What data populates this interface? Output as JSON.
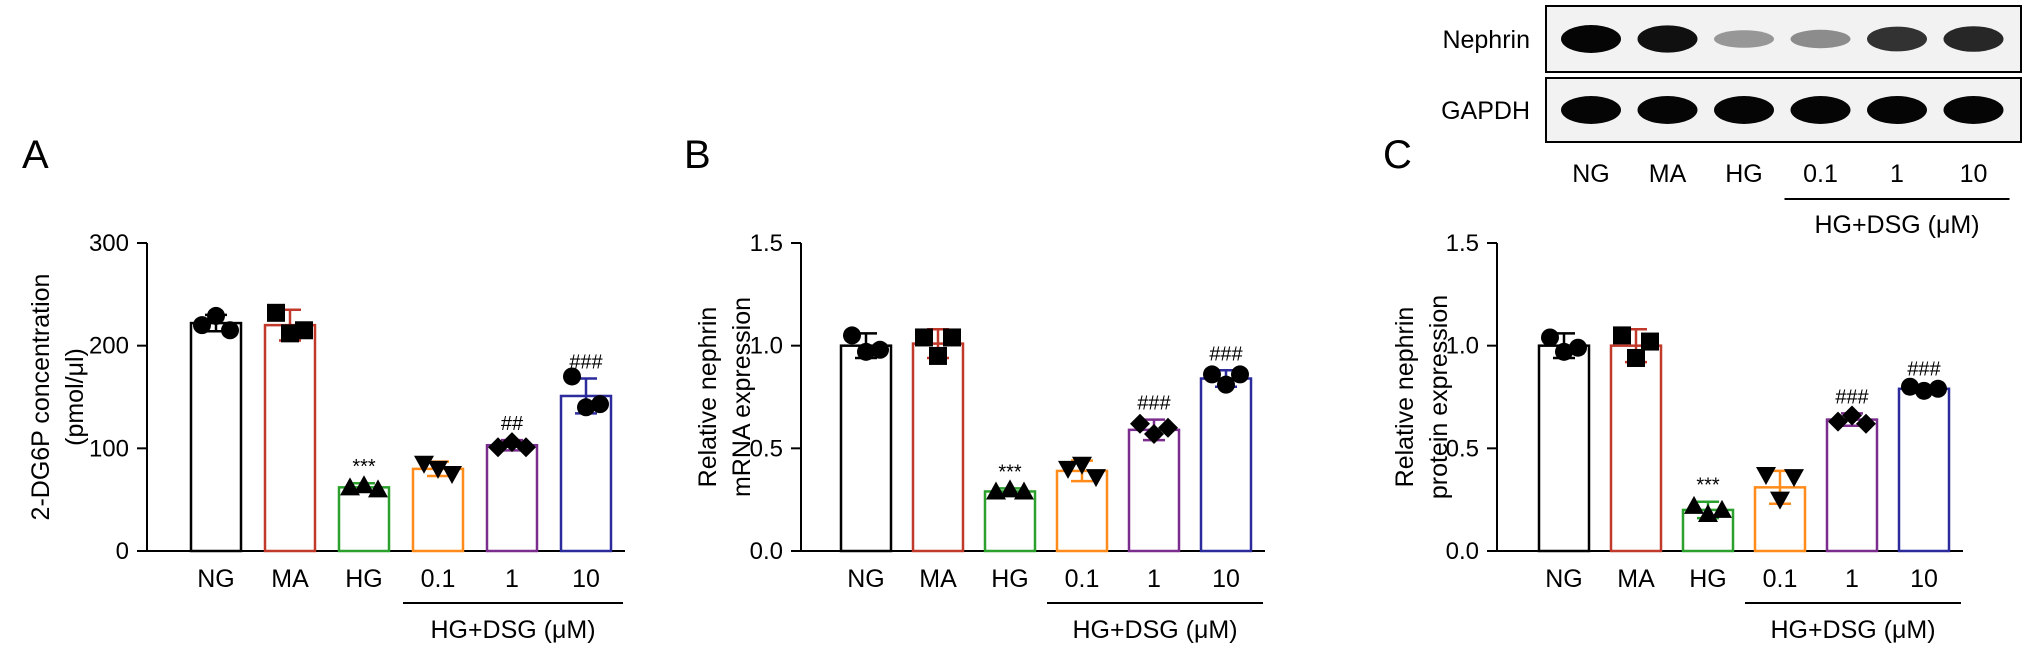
{
  "chart_data": [
    {
      "type": "bar",
      "panel": "A",
      "categories": [
        "NG",
        "MA",
        "HG",
        "0.1",
        "1",
        "10"
      ],
      "group_label": "HG+DSG (μM)",
      "ylabel_lines": [
        "2-DG6P concentration",
        "(pmol/μl)"
      ],
      "ylim": [
        0,
        300
      ],
      "yticks": [
        "0",
        "100",
        "200",
        "300"
      ],
      "values": [
        222,
        220,
        62,
        80,
        103,
        151
      ],
      "errors": [
        8,
        15,
        4,
        7,
        5,
        17
      ],
      "points": [
        [
          220,
          229,
          215
        ],
        [
          232,
          212,
          215
        ],
        [
          62,
          64,
          60
        ],
        [
          85,
          80,
          75
        ],
        [
          101,
          106,
          101
        ],
        [
          170,
          140,
          143
        ]
      ],
      "markers": [
        "circle",
        "square",
        "triangle-up",
        "triangle-down",
        "diamond",
        "circle"
      ],
      "significance": [
        "",
        "",
        "***",
        "",
        "##",
        "###"
      ]
    },
    {
      "type": "bar",
      "panel": "B",
      "categories": [
        "NG",
        "MA",
        "HG",
        "0.1",
        "1",
        "10"
      ],
      "group_label": "HG+DSG (μM)",
      "ylabel_lines": [
        "Relative nephrin",
        "mRNA expression"
      ],
      "ylim": [
        0,
        1.5
      ],
      "yticks": [
        "0.0",
        "0.5",
        "1.0",
        "1.5"
      ],
      "values": [
        1.0,
        1.01,
        0.29,
        0.39,
        0.59,
        0.84
      ],
      "errors": [
        0.06,
        0.07,
        0.015,
        0.05,
        0.05,
        0.04
      ],
      "points": [
        [
          1.05,
          0.97,
          0.98
        ],
        [
          1.04,
          0.95,
          1.04
        ],
        [
          0.29,
          0.3,
          0.29
        ],
        [
          0.4,
          0.42,
          0.36
        ],
        [
          0.62,
          0.57,
          0.6
        ],
        [
          0.86,
          0.81,
          0.86
        ]
      ],
      "markers": [
        "circle",
        "square",
        "triangle-up",
        "triangle-down",
        "diamond",
        "circle"
      ],
      "significance": [
        "",
        "",
        "***",
        "",
        "###",
        "###"
      ]
    },
    {
      "type": "bar",
      "panel": "C",
      "categories": [
        "NG",
        "MA",
        "HG",
        "0.1",
        "1",
        "10"
      ],
      "group_label": "HG+DSG (μM)",
      "ylabel_lines": [
        "Relative nephrin",
        "protein expression"
      ],
      "ylim": [
        0,
        1.5
      ],
      "yticks": [
        "0.0",
        "0.5",
        "1.0",
        "1.5"
      ],
      "values": [
        1.0,
        1.0,
        0.2,
        0.31,
        0.64,
        0.79
      ],
      "errors": [
        0.06,
        0.08,
        0.04,
        0.08,
        0.03,
        0.015
      ],
      "points": [
        [
          1.04,
          0.97,
          0.99
        ],
        [
          1.05,
          0.94,
          1.02
        ],
        [
          0.22,
          0.18,
          0.2
        ],
        [
          0.37,
          0.25,
          0.36
        ],
        [
          0.63,
          0.66,
          0.62
        ],
        [
          0.8,
          0.78,
          0.79
        ]
      ],
      "markers": [
        "circle",
        "square",
        "triangle-up",
        "triangle-down",
        "diamond",
        "circle"
      ],
      "significance": [
        "",
        "",
        "***",
        "",
        "###",
        "###"
      ]
    }
  ],
  "bar_colors": [
    "#000000",
    "#c0392b",
    "#2ca02c",
    "#ff8c1a",
    "#7b2d8e",
    "#2b2b9c"
  ],
  "western_blot": {
    "rows": [
      {
        "label": "Nephrin",
        "intensities": [
          1.0,
          0.95,
          0.35,
          0.4,
          0.8,
          0.85
        ]
      },
      {
        "label": "GAPDH",
        "intensities": [
          1.0,
          1.0,
          1.0,
          1.0,
          1.0,
          1.0
        ]
      }
    ],
    "lane_labels": [
      "NG",
      "MA",
      "HG",
      "0.1",
      "1",
      "10"
    ],
    "group_label": "HG+DSG (μM)"
  }
}
